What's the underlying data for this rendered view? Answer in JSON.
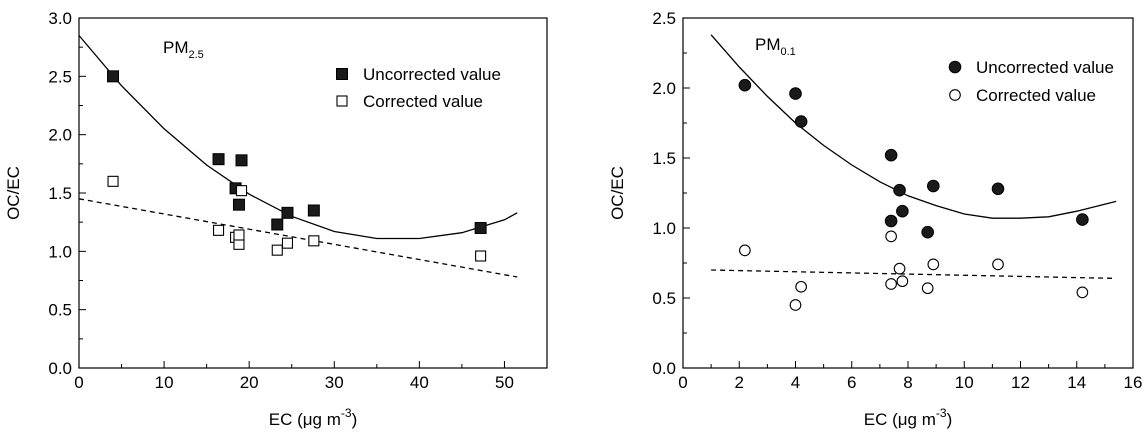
{
  "chart_data": [
    {
      "type": "scatter",
      "annotation": {
        "main": "PM",
        "sub": "2.5"
      },
      "xlabel": "EC (μg m⁻³)",
      "xlabel_main": "EC (",
      "xlabel_unit": "μg m",
      "xlabel_exp": "-3",
      "xlabel_close": ")",
      "ylabel": "OC/EC",
      "xlim": [
        0,
        55
      ],
      "ylim": [
        0,
        3.0
      ],
      "xticks": [
        0,
        10,
        20,
        30,
        40,
        50
      ],
      "yticks": [
        "0.0",
        "0.5",
        "1.0",
        "1.5",
        "2.0",
        "2.5",
        "3.0"
      ],
      "grid": false,
      "legend_position": "top-right",
      "series": [
        {
          "name": "Uncorrected value",
          "marker": "filled-square",
          "x": [
            4.0,
            16.4,
            18.4,
            18.8,
            19.1,
            23.3,
            24.5,
            27.6,
            47.2
          ],
          "y": [
            2.5,
            1.79,
            1.54,
            1.4,
            1.78,
            1.23,
            1.33,
            1.35,
            1.2
          ]
        },
        {
          "name": "Corrected value",
          "marker": "open-square",
          "x": [
            4.0,
            16.4,
            18.4,
            18.8,
            18.8,
            19.1,
            23.3,
            24.5,
            27.6,
            47.2
          ],
          "y": [
            1.6,
            1.18,
            1.12,
            1.06,
            1.14,
            1.52,
            1.01,
            1.07,
            1.09,
            0.96
          ]
        }
      ],
      "fits": [
        {
          "series": "Uncorrected value",
          "kind": "quadratic",
          "style": "solid",
          "x": [
            0,
            5,
            10,
            15,
            20,
            25,
            30,
            35,
            40,
            45,
            50,
            51.5
          ],
          "y": [
            2.85,
            2.42,
            2.05,
            1.74,
            1.49,
            1.3,
            1.17,
            1.11,
            1.11,
            1.16,
            1.27,
            1.33
          ]
        },
        {
          "series": "Corrected value",
          "kind": "linear",
          "style": "dashed",
          "x": [
            0,
            51.5
          ],
          "y": [
            1.45,
            0.78
          ]
        }
      ]
    },
    {
      "type": "scatter",
      "annotation": {
        "main": "PM",
        "sub": "0.1"
      },
      "xlabel": "EC (μg m⁻³)",
      "xlabel_main": "EC (",
      "xlabel_unit": "μg m",
      "xlabel_exp": "-3",
      "xlabel_close": ")",
      "ylabel": "OC/EC",
      "xlim": [
        0,
        16
      ],
      "ylim": [
        0,
        2.5
      ],
      "xticks": [
        0,
        2,
        4,
        6,
        8,
        10,
        12,
        14,
        16
      ],
      "yticks": [
        "0.0",
        "0.5",
        "1.0",
        "1.5",
        "2.0",
        "2.5"
      ],
      "grid": false,
      "legend_position": "top-right",
      "series": [
        {
          "name": "Uncorrected value",
          "marker": "filled-circle",
          "x": [
            2.2,
            4.0,
            4.2,
            7.4,
            7.4,
            7.7,
            7.8,
            8.7,
            8.9,
            11.2,
            14.2
          ],
          "y": [
            2.02,
            1.96,
            1.76,
            1.52,
            1.05,
            1.27,
            1.12,
            0.97,
            1.3,
            1.28,
            1.06
          ]
        },
        {
          "name": "Corrected value",
          "marker": "open-circle",
          "x": [
            2.2,
            4.0,
            4.2,
            7.4,
            7.4,
            7.7,
            7.8,
            8.7,
            8.9,
            11.2,
            14.2
          ],
          "y": [
            0.84,
            0.45,
            0.58,
            0.94,
            0.6,
            0.71,
            0.62,
            0.57,
            0.74,
            0.74,
            0.54
          ]
        }
      ],
      "fits": [
        {
          "series": "Uncorrected value",
          "kind": "quadratic",
          "style": "solid",
          "x": [
            1,
            2,
            3,
            4,
            5,
            6,
            7,
            8,
            9,
            10,
            11,
            12,
            13,
            14,
            15.4
          ],
          "y": [
            2.38,
            2.15,
            1.94,
            1.75,
            1.59,
            1.45,
            1.33,
            1.23,
            1.16,
            1.1,
            1.07,
            1.07,
            1.08,
            1.12,
            1.19
          ]
        },
        {
          "series": "Corrected value",
          "kind": "linear",
          "style": "dashed",
          "x": [
            1,
            15.4
          ],
          "y": [
            0.7,
            0.64
          ]
        }
      ]
    }
  ]
}
